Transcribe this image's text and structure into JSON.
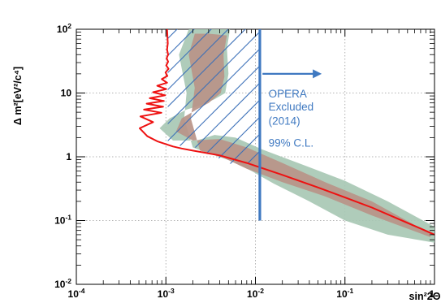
{
  "chart_data": {
    "type": "line",
    "xlabel": "sin²2Θ",
    "ylabel": "Δ m²[eV²/c⁴]",
    "x_scale": "log",
    "y_scale": "log",
    "xlim": [
      0.0001,
      1
    ],
    "ylim": [
      0.01,
      100
    ],
    "x_ticks": [
      {
        "value": 0.0001,
        "base": "10",
        "exp": "-4"
      },
      {
        "value": 0.001,
        "base": "10",
        "exp": "-3"
      },
      {
        "value": 0.01,
        "base": "10",
        "exp": "-2"
      },
      {
        "value": 0.1,
        "base": "10",
        "exp": "-1"
      },
      {
        "value": 1,
        "base": "1",
        "exp": ""
      }
    ],
    "y_ticks": [
      {
        "value": 0.01,
        "base": "10",
        "exp": "-2"
      },
      {
        "value": 0.1,
        "base": "10",
        "exp": "-1"
      },
      {
        "value": 1,
        "base": "1",
        "exp": ""
      },
      {
        "value": 10,
        "base": "10",
        "exp": ""
      },
      {
        "value": 100,
        "base": "10",
        "exp": "2"
      }
    ],
    "grid": true,
    "series": [
      {
        "color": "#ee1111",
        "x": [
          0.00103,
          0.00105,
          0.00103,
          0.00106,
          0.00102,
          0.00106,
          0.00101,
          0.00107,
          0.00099,
          0.00104,
          0.0009,
          0.00103,
          0.0008,
          0.00101,
          0.00072,
          0.00098,
          0.00066,
          0.00095,
          0.00061,
          0.00093,
          0.00057,
          0.00089,
          0.00052,
          0.00072,
          0.00051,
          0.00062,
          0.0008,
          0.00104,
          0.0012,
          0.0015,
          0.002,
          0.004,
          0.008,
          0.02,
          0.05,
          0.1,
          0.2,
          0.4,
          0.7,
          1.0
        ],
        "y": [
          100,
          60,
          48,
          40,
          35,
          31,
          27,
          24,
          21,
          18.5,
          16.5,
          14.5,
          13,
          11.5,
          10.3,
          9.2,
          8.3,
          7.5,
          6.8,
          6.1,
          5.5,
          4.9,
          4.3,
          3.5,
          2.8,
          2.1,
          1.75,
          1.55,
          1.45,
          1.35,
          1.25,
          1.05,
          0.8,
          0.52,
          0.33,
          0.23,
          0.16,
          0.105,
          0.075,
          0.06
        ]
      }
    ],
    "bands": [
      {
        "color": "#a8c8b4",
        "x": [
          0.0018,
          0.0028,
          0.0052,
          0.0048,
          0.005,
          0.0046,
          0.0035,
          0.0025,
          0.0017,
          0.0011,
          0.00085,
          0.0012,
          0.0022,
          0.0035,
          0.006,
          0.012,
          0.03,
          0.1,
          0.3,
          1.0,
          1.0,
          0.3,
          0.1,
          0.04,
          0.016,
          0.009,
          0.0055,
          0.0032,
          0.002,
          0.0016,
          0.0017,
          0.0014,
          0.0018
        ],
        "y": [
          100,
          100,
          100,
          50,
          20,
          10,
          8,
          6.5,
          5.5,
          4.0,
          2.8,
          1.8,
          1.8,
          2.2,
          2.0,
          1.3,
          0.8,
          0.42,
          0.2,
          0.08,
          0.045,
          0.06,
          0.1,
          0.2,
          0.38,
          0.6,
          0.85,
          1.1,
          1.4,
          4,
          10,
          40,
          100
        ]
      },
      {
        "color": "#b89488",
        "x": [
          0.0021,
          0.003,
          0.0048,
          0.0044,
          0.0045,
          0.0041,
          0.003,
          0.0022,
          0.0015,
          0.0013,
          0.002,
          0.004,
          0.008,
          0.02,
          0.06,
          0.2,
          0.6,
          0.9,
          0.9,
          0.2,
          0.06,
          0.02,
          0.008,
          0.0045,
          0.0024,
          0.0019,
          0.0021,
          0.0018,
          0.0021
        ],
        "y": [
          85,
          85,
          80,
          40,
          18,
          10,
          7,
          5.5,
          4,
          2.5,
          1.8,
          1.9,
          1.4,
          0.8,
          0.4,
          0.2,
          0.085,
          0.065,
          0.055,
          0.12,
          0.24,
          0.4,
          0.65,
          0.95,
          1.25,
          4,
          12,
          40,
          85
        ]
      }
    ],
    "hatch": {
      "color": "#3a6fb8",
      "x": [
        0.00105,
        0.011,
        0.011,
        0.0052,
        0.00225,
        0.0014,
        0.00105
      ],
      "y": [
        100,
        100,
        0.78,
        0.78,
        1.38,
        1.5,
        1.55
      ]
    },
    "limit_line": {
      "x": 0.0112,
      "y_from": 0.1,
      "y_to": 100,
      "color": "#3f79c1"
    },
    "arrow": {
      "x_from": 0.012,
      "x_to": 0.055,
      "y": 20,
      "color": "#3f79c1"
    },
    "annotations": [
      {
        "text": "OPERA",
        "x": 0.014,
        "y": 8.5
      },
      {
        "text": "Excluded",
        "x": 0.014,
        "y": 5.3
      },
      {
        "text": "(2014)",
        "x": 0.014,
        "y": 3.2
      },
      {
        "text": "99% C.L.",
        "x": 0.014,
        "y": 1.45
      }
    ],
    "annotation_color": "#3f79c1"
  }
}
